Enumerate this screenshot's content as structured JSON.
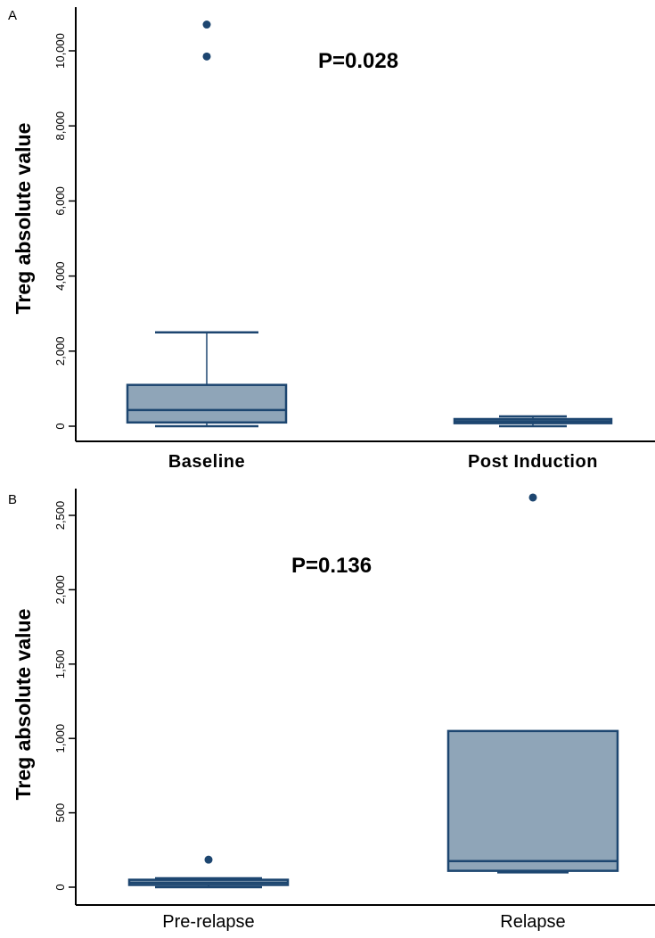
{
  "colors": {
    "box_fill": "#8fa5b8",
    "box_stroke": "#1d4670",
    "point": "#1d4670",
    "axis": "#000000",
    "text": "#000000"
  },
  "chart_data": [
    {
      "type": "box",
      "panel_label": "A",
      "ylabel": "Treg absolute value",
      "ylim": [
        0,
        11000
      ],
      "yticks": [
        0,
        2000,
        4000,
        6000,
        8000,
        10000
      ],
      "ytick_labels": [
        "0",
        "2,000",
        "4,000",
        "6,000",
        "8,000",
        "10,000"
      ],
      "annotation": "P=0.028",
      "categories": [
        "Baseline",
        "Post Induction"
      ],
      "boxes": [
        {
          "min": 0,
          "q1": 100,
          "median": 430,
          "q3": 1100,
          "max": 2500,
          "outliers": [
            10700,
            9850
          ]
        },
        {
          "min": 0,
          "q1": 80,
          "median": 130,
          "q3": 190,
          "max": 260,
          "outliers": []
        }
      ]
    },
    {
      "type": "box",
      "panel_label": "B",
      "ylabel": "Treg absolute value",
      "ylim": [
        0,
        2750
      ],
      "yticks": [
        0,
        500,
        1000,
        1500,
        2000,
        2500
      ],
      "ytick_labels": [
        "0",
        "500",
        "1,000",
        "1,500",
        "2,000",
        "2,500"
      ],
      "annotation": "P=0.136",
      "categories": [
        "Pre-relapse",
        "Relapse"
      ],
      "boxes": [
        {
          "min": 0,
          "q1": 15,
          "median": 30,
          "q3": 50,
          "max": 60,
          "outliers": [
            185
          ]
        },
        {
          "min": 100,
          "q1": 110,
          "median": 175,
          "q3": 1050,
          "max": 1050,
          "outliers": [
            2620
          ]
        }
      ]
    }
  ]
}
